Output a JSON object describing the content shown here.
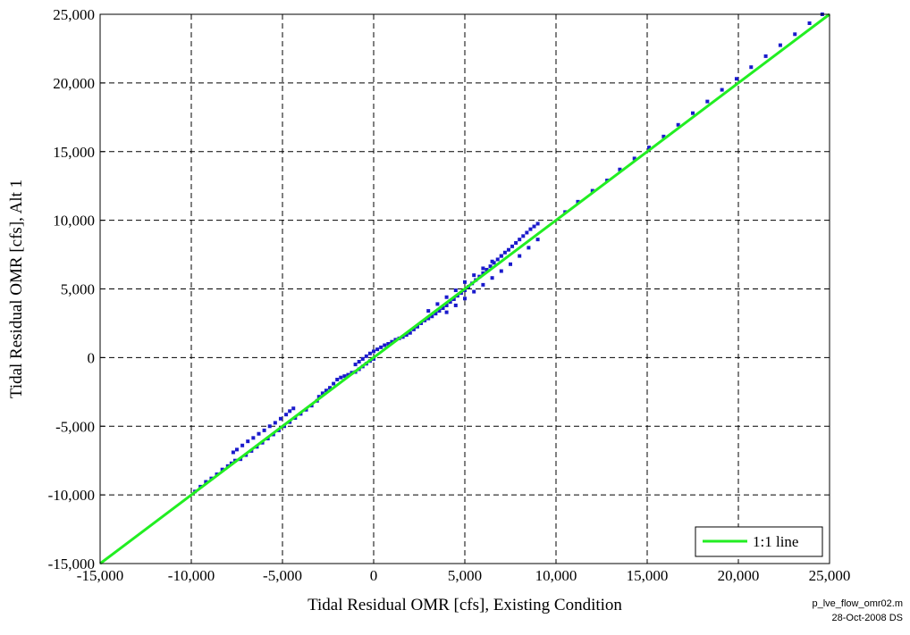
{
  "chart_data": {
    "type": "scatter",
    "title": "",
    "xlabel": "Tidal Residual OMR [cfs], Existing Condition",
    "ylabel": "Tidal Residual OMR [cfs], Alt 1",
    "xlim": [
      -15000,
      25000
    ],
    "ylim": [
      -15000,
      25000
    ],
    "x_ticks": [
      -15000,
      -10000,
      -5000,
      0,
      5000,
      10000,
      15000,
      20000,
      25000
    ],
    "y_ticks": [
      -15000,
      -10000,
      -5000,
      0,
      5000,
      10000,
      15000,
      20000,
      25000
    ],
    "x_tick_labels": [
      "-15,000",
      "-10,000",
      "-5,000",
      "0",
      "5,000",
      "10,000",
      "15,000",
      "20,000",
      "25,000"
    ],
    "y_tick_labels": [
      "-15,000",
      "-10,000",
      "-5,000",
      "0",
      "5,000",
      "10,000",
      "15,000",
      "20,000",
      "25,000"
    ],
    "grid": true,
    "legend_position": "bottom-right",
    "series": [
      {
        "type": "scatter",
        "color": "#1a1acc",
        "points": [
          [
            -9800,
            -9750
          ],
          [
            -9500,
            -9400
          ],
          [
            -9200,
            -9050
          ],
          [
            -8900,
            -8800
          ],
          [
            -8600,
            -8500
          ],
          [
            -8300,
            -8150
          ],
          [
            -8000,
            -7900
          ],
          [
            -7800,
            -7700
          ],
          [
            -7700,
            -6900
          ],
          [
            -7500,
            -6700
          ],
          [
            -7200,
            -6400
          ],
          [
            -6900,
            -6100
          ],
          [
            -6600,
            -5850
          ],
          [
            -6300,
            -5550
          ],
          [
            -6000,
            -5300
          ],
          [
            -5700,
            -5000
          ],
          [
            -5400,
            -4750
          ],
          [
            -5100,
            -4450
          ],
          [
            -4800,
            -4150
          ],
          [
            -4600,
            -3900
          ],
          [
            -4400,
            -3700
          ],
          [
            -7600,
            -7500
          ],
          [
            -7300,
            -7400
          ],
          [
            -7000,
            -7100
          ],
          [
            -6700,
            -6800
          ],
          [
            -6400,
            -6500
          ],
          [
            -6100,
            -6200
          ],
          [
            -5800,
            -5900
          ],
          [
            -5500,
            -5600
          ],
          [
            -5200,
            -5300
          ],
          [
            -4900,
            -5000
          ],
          [
            -4600,
            -4700
          ],
          [
            -4300,
            -4400
          ],
          [
            -4000,
            -4100
          ],
          [
            -3700,
            -3800
          ],
          [
            -3400,
            -3500
          ],
          [
            -3100,
            -3150
          ],
          [
            -3000,
            -2850
          ],
          [
            -2800,
            -2600
          ],
          [
            -2600,
            -2400
          ],
          [
            -2400,
            -2200
          ],
          [
            -2200,
            -1900
          ],
          [
            -2000,
            -1600
          ],
          [
            -1800,
            -1450
          ],
          [
            -1600,
            -1350
          ],
          [
            -1400,
            -1250
          ],
          [
            -1200,
            -1100
          ],
          [
            -1000,
            -1050
          ],
          [
            -800,
            -850
          ],
          [
            -600,
            -650
          ],
          [
            -400,
            -450
          ],
          [
            -200,
            -250
          ],
          [
            0,
            -100
          ],
          [
            -1000,
            -500
          ],
          [
            -800,
            -300
          ],
          [
            -600,
            -100
          ],
          [
            -400,
            100
          ],
          [
            -200,
            300
          ],
          [
            0,
            450
          ],
          [
            200,
            600
          ],
          [
            400,
            750
          ],
          [
            600,
            900
          ],
          [
            800,
            1000
          ],
          [
            1000,
            1150
          ],
          [
            1200,
            1300
          ],
          [
            1400,
            1400
          ],
          [
            1600,
            1500
          ],
          [
            1800,
            1650
          ],
          [
            2000,
            1800
          ],
          [
            2200,
            2050
          ],
          [
            2400,
            2250
          ],
          [
            2600,
            2500
          ],
          [
            2800,
            2700
          ],
          [
            3000,
            2850
          ],
          [
            3200,
            3000
          ],
          [
            3400,
            3200
          ],
          [
            3600,
            3400
          ],
          [
            3800,
            3600
          ],
          [
            4000,
            3800
          ],
          [
            4200,
            4050
          ],
          [
            4400,
            4250
          ],
          [
            4600,
            4500
          ],
          [
            4800,
            4700
          ],
          [
            5000,
            4900
          ],
          [
            5200,
            5150
          ],
          [
            5400,
            5400
          ],
          [
            5600,
            5650
          ],
          [
            5800,
            5900
          ],
          [
            6000,
            6150
          ],
          [
            6200,
            6400
          ],
          [
            6400,
            6650
          ],
          [
            6600,
            6900
          ],
          [
            6800,
            7150
          ],
          [
            7000,
            7400
          ],
          [
            7200,
            7650
          ],
          [
            7400,
            7850
          ],
          [
            7600,
            8100
          ],
          [
            7800,
            8350
          ],
          [
            8000,
            8600
          ],
          [
            8200,
            8850
          ],
          [
            8400,
            9100
          ],
          [
            8600,
            9350
          ],
          [
            8800,
            9550
          ],
          [
            9000,
            9750
          ],
          [
            4000,
            3300
          ],
          [
            4500,
            3800
          ],
          [
            5000,
            4300
          ],
          [
            5500,
            4800
          ],
          [
            6000,
            5300
          ],
          [
            6500,
            5800
          ],
          [
            7000,
            6300
          ],
          [
            7500,
            6800
          ],
          [
            8000,
            7400
          ],
          [
            8500,
            8000
          ],
          [
            9000,
            8600
          ],
          [
            3000,
            3400
          ],
          [
            3500,
            3900
          ],
          [
            4000,
            4400
          ],
          [
            4500,
            4900
          ],
          [
            5000,
            5500
          ],
          [
            5500,
            6000
          ],
          [
            6000,
            6500
          ],
          [
            6500,
            7000
          ],
          [
            7000,
            7400
          ],
          [
            10500,
            10600
          ],
          [
            11200,
            11350
          ],
          [
            12000,
            12150
          ],
          [
            12800,
            12900
          ],
          [
            13500,
            13700
          ],
          [
            14300,
            14500
          ],
          [
            15100,
            15300
          ],
          [
            15900,
            16100
          ],
          [
            16700,
            16950
          ],
          [
            17500,
            17800
          ],
          [
            18300,
            18650
          ],
          [
            19100,
            19500
          ],
          [
            19900,
            20300
          ],
          [
            20700,
            21150
          ],
          [
            21500,
            21950
          ],
          [
            22300,
            22750
          ],
          [
            23100,
            23550
          ],
          [
            23900,
            24350
          ],
          [
            24600,
            25000
          ]
        ]
      },
      {
        "name": "1:1 line",
        "type": "line",
        "color": "#22ee22",
        "x": [
          -15000,
          25000
        ],
        "y": [
          -15000,
          25000
        ]
      }
    ]
  },
  "footer": {
    "script_name": "p_lve_flow_omr02.m",
    "stamp": "28-Oct-2008 DS"
  }
}
